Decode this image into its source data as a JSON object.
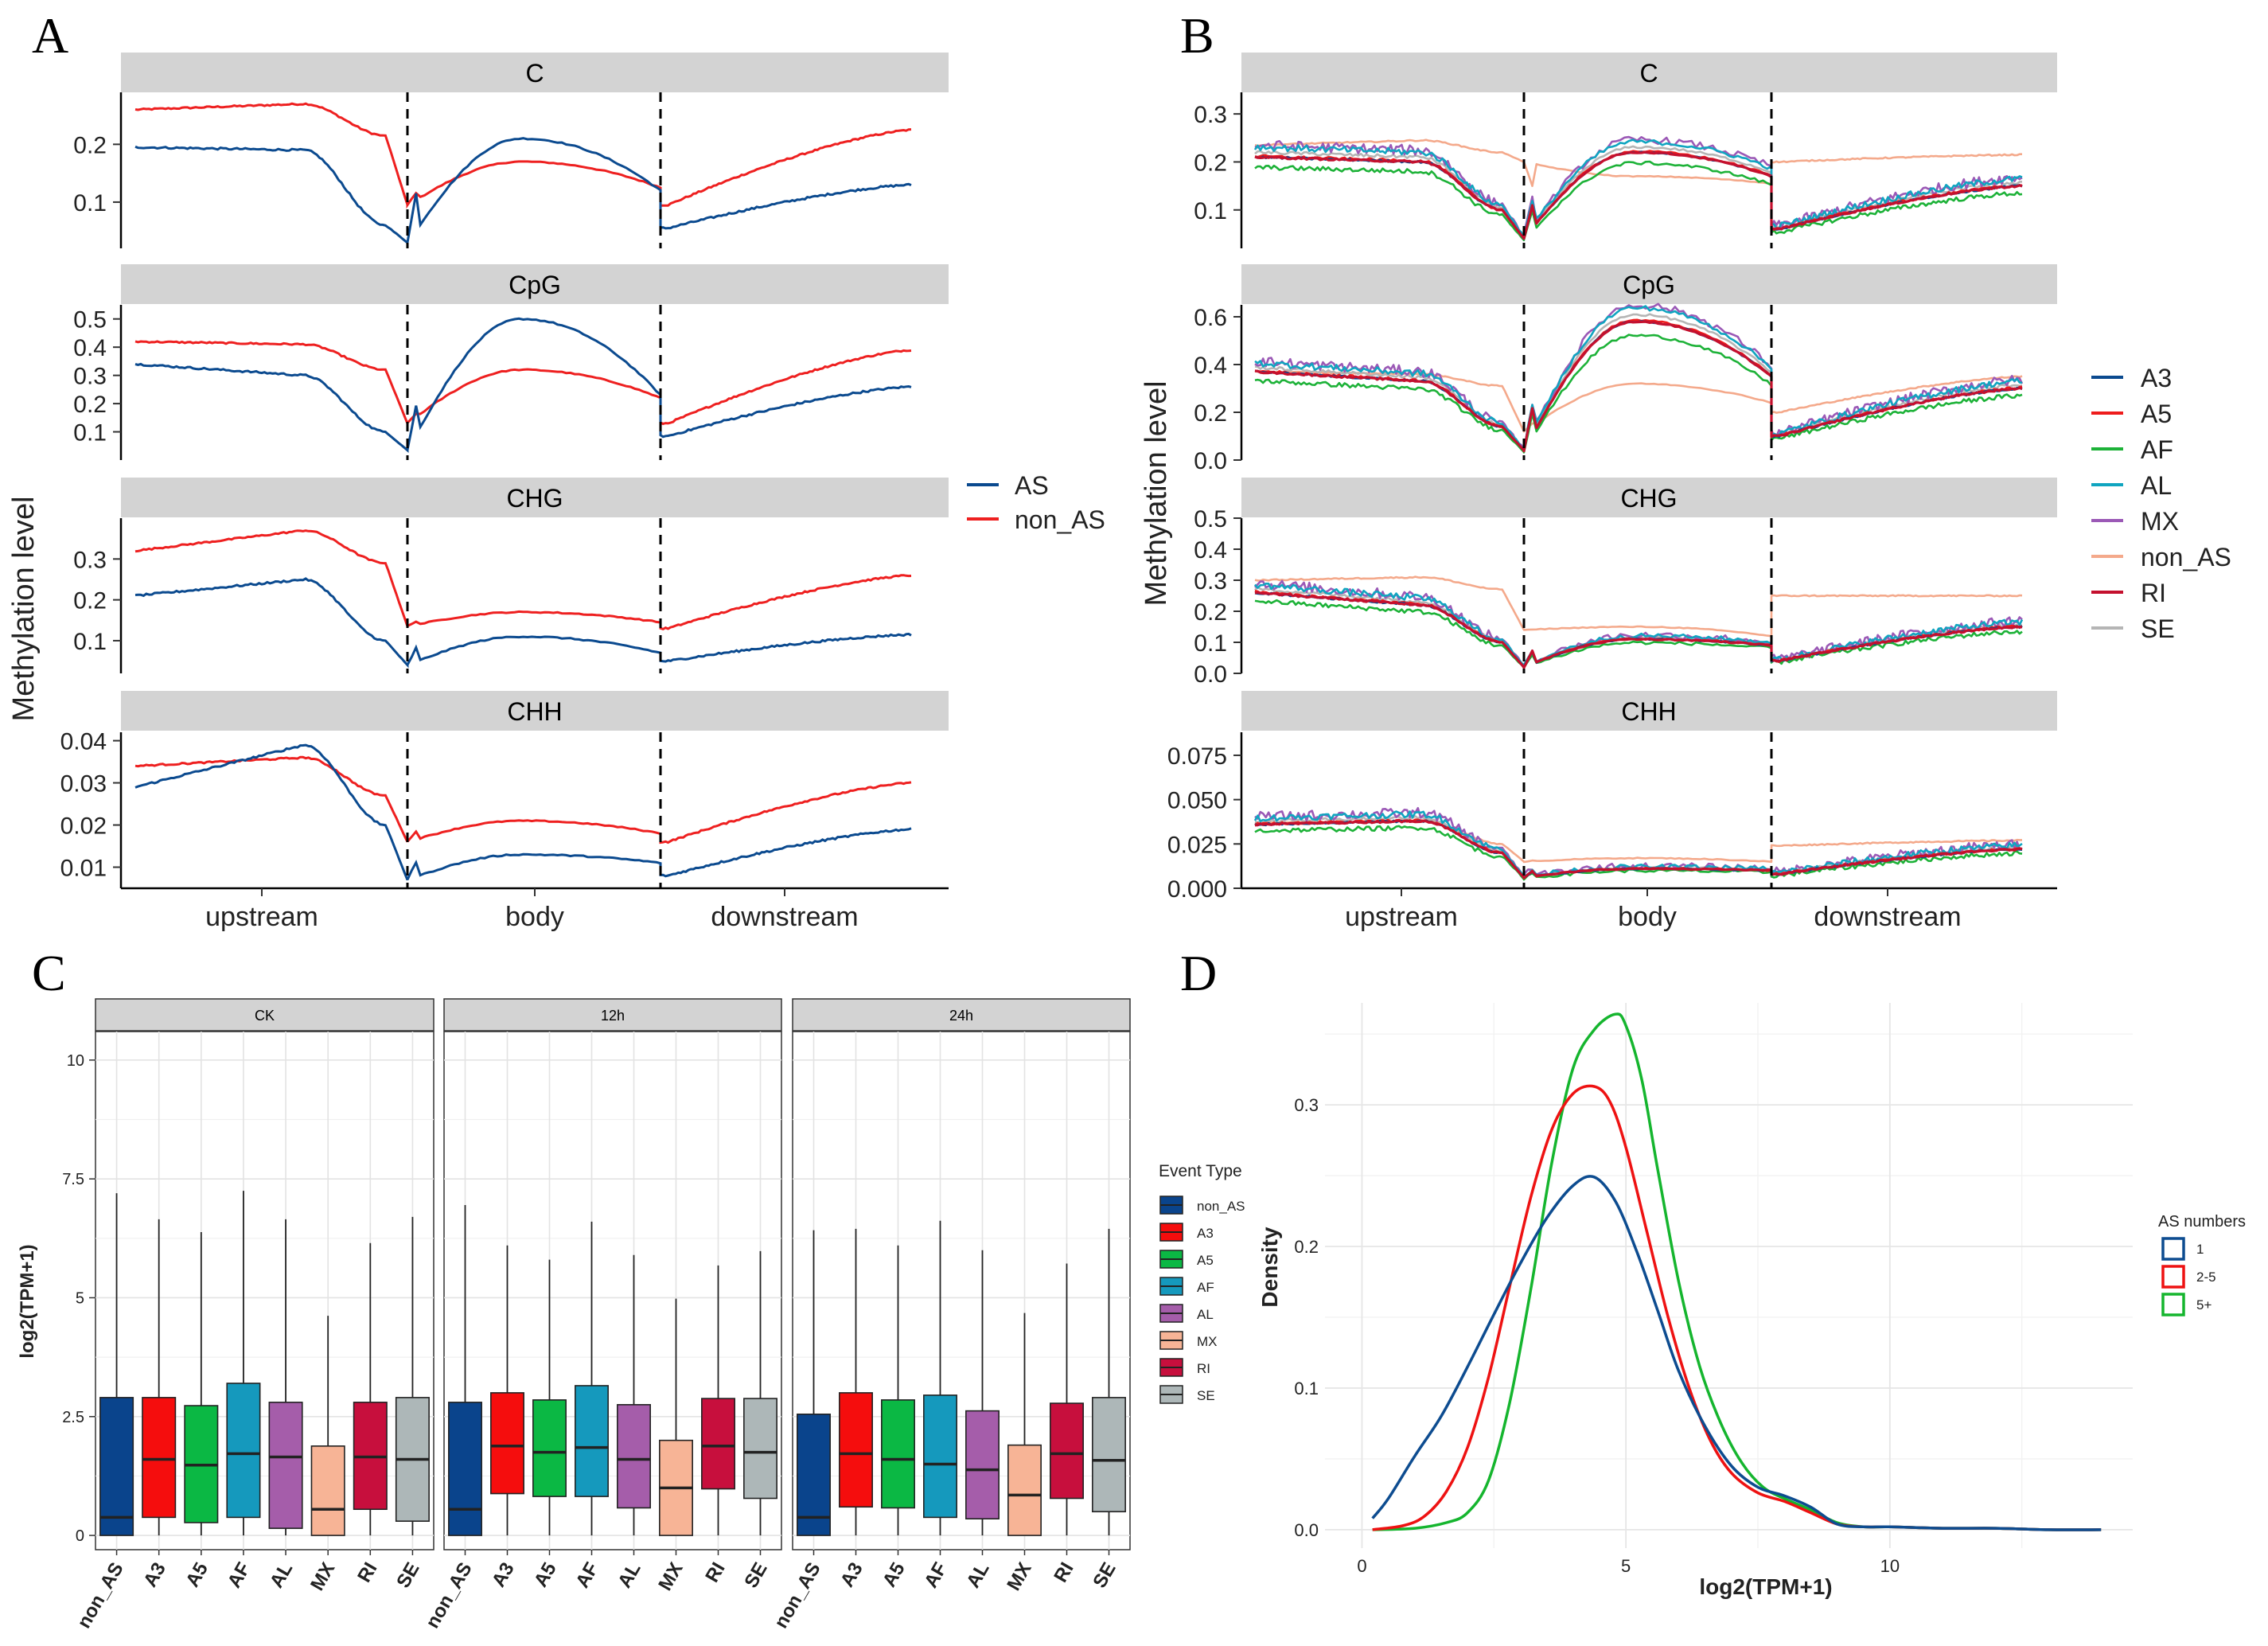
{
  "figure": {
    "panel_labels": [
      "A",
      "B",
      "C",
      "D"
    ]
  },
  "colors": {
    "AS": "#0B4A8F",
    "non_AS_A": "#EE2020",
    "A3": "#0B4A8F",
    "A5": "#EE1C1C",
    "AF": "#1DB238",
    "AL": "#10A5C0",
    "MX": "#9B59B6",
    "non_AS": "#F4A98B",
    "RI": "#C4102E",
    "SE": "#B5B5B5",
    "box_non_AS": "#0A448C",
    "box_A3": "#F50D0D",
    "box_A5": "#0BB844",
    "box_AF": "#1599BD",
    "box_AL": "#A55DAA",
    "box_MX": "#F7B496",
    "box_RI": "#C70F3D",
    "box_SE": "#ADB7B8",
    "dens_1": "#0D4C90",
    "dens_2_5": "#EE1212",
    "dens_5p": "#15B52E",
    "strip": "#D3D3D3"
  },
  "chart_data": [
    {
      "panel": "A",
      "type": "line",
      "ylabel": "Methylation level",
      "x_categories": [
        "upstream",
        "body",
        "downstream"
      ],
      "legend": [
        "AS",
        "non_AS"
      ],
      "facets": [
        {
          "name": "C",
          "ylim": [
            0.02,
            0.29
          ],
          "ticks": [
            0.1,
            0.2
          ],
          "tick_labels": [
            "0.1",
            "0.2"
          ],
          "series": {
            "AS": {
              "up_start": 0.195,
              "up_mid": 0.19,
              "up_end": 0.06,
              "up_min": 0.03,
              "body_start": 0.13,
              "body_mid": 0.21,
              "body_end": 0.12,
              "dn_min": 0.055,
              "dn_end": 0.13
            },
            "non_AS": {
              "up_start": 0.26,
              "up_mid": 0.27,
              "up_end": 0.215,
              "up_min": 0.095,
              "body_start": 0.12,
              "body_mid": 0.17,
              "body_end": 0.125,
              "dn_min": 0.095,
              "dn_end": 0.225
            }
          }
        },
        {
          "name": "CpG",
          "ylim": [
            0.0,
            0.55
          ],
          "ticks": [
            0.1,
            0.2,
            0.3,
            0.4,
            0.5
          ],
          "tick_labels": [
            "0.1",
            "0.2",
            "0.3",
            "0.4",
            "0.5"
          ],
          "series": {
            "AS": {
              "up_start": 0.34,
              "up_mid": 0.3,
              "up_end": 0.1,
              "up_min": 0.035,
              "body_start": 0.22,
              "body_mid": 0.5,
              "body_end": 0.23,
              "dn_min": 0.085,
              "dn_end": 0.26
            },
            "non_AS": {
              "up_start": 0.42,
              "up_mid": 0.41,
              "up_end": 0.32,
              "up_min": 0.13,
              "body_start": 0.17,
              "body_mid": 0.32,
              "body_end": 0.22,
              "dn_min": 0.13,
              "dn_end": 0.39
            }
          }
        },
        {
          "name": "CHG",
          "ylim": [
            0.02,
            0.4
          ],
          "ticks": [
            0.1,
            0.2,
            0.3
          ],
          "tick_labels": [
            "0.1",
            "0.2",
            "0.3"
          ],
          "series": {
            "AS": {
              "up_start": 0.21,
              "up_mid": 0.25,
              "up_end": 0.1,
              "up_min": 0.04,
              "body_start": 0.09,
              "body_mid": 0.11,
              "body_end": 0.07,
              "dn_min": 0.05,
              "dn_end": 0.115
            },
            "non_AS": {
              "up_start": 0.32,
              "up_mid": 0.37,
              "up_end": 0.29,
              "up_min": 0.135,
              "body_start": 0.15,
              "body_mid": 0.17,
              "body_end": 0.145,
              "dn_min": 0.13,
              "dn_end": 0.26
            }
          }
        },
        {
          "name": "CHH",
          "ylim": [
            0.005,
            0.042
          ],
          "ticks": [
            0.01,
            0.02,
            0.03,
            0.04
          ],
          "tick_labels": [
            "0.01",
            "0.02",
            "0.03",
            "0.04"
          ],
          "series": {
            "AS": {
              "up_start": 0.029,
              "up_mid": 0.039,
              "up_end": 0.02,
              "up_min": 0.007,
              "body_start": 0.012,
              "body_mid": 0.013,
              "body_end": 0.011,
              "dn_min": 0.008,
              "dn_end": 0.019
            },
            "non_AS": {
              "up_start": 0.034,
              "up_mid": 0.036,
              "up_end": 0.027,
              "up_min": 0.016,
              "body_start": 0.019,
              "body_mid": 0.021,
              "body_end": 0.018,
              "dn_min": 0.016,
              "dn_end": 0.03
            }
          }
        }
      ]
    },
    {
      "panel": "B",
      "type": "line",
      "ylabel": "Methylation level",
      "x_categories": [
        "upstream",
        "body",
        "downstream"
      ],
      "legend": [
        "A3",
        "A5",
        "AF",
        "AL",
        "MX",
        "non_AS",
        "RI",
        "SE"
      ],
      "facets": [
        {
          "name": "C",
          "ylim": [
            0.02,
            0.345
          ],
          "ticks": [
            0.1,
            0.2,
            0.3
          ],
          "tick_labels": [
            "0.1",
            "0.2",
            "0.3"
          ]
        },
        {
          "name": "CpG",
          "ylim": [
            0.0,
            0.65
          ],
          "ticks": [
            0.0,
            0.2,
            0.4,
            0.6
          ],
          "tick_labels": [
            "0.0",
            "0.2",
            "0.4",
            "0.6"
          ]
        },
        {
          "name": "CHG",
          "ylim": [
            0.0,
            0.5
          ],
          "ticks": [
            0.0,
            0.1,
            0.2,
            0.3,
            0.4,
            0.5
          ],
          "tick_labels": [
            "0.0",
            "0.1",
            "0.2",
            "0.3",
            "0.4",
            "0.5"
          ]
        },
        {
          "name": "CHH",
          "ylim": [
            0.0,
            0.088
          ],
          "ticks": [
            0.0,
            0.025,
            0.05,
            0.075
          ],
          "tick_labels": [
            "0.000",
            "0.025",
            "0.050",
            "0.075"
          ]
        }
      ]
    },
    {
      "panel": "C",
      "type": "box",
      "ylabel": "log2(TPM+1)",
      "ylim": [
        -0.3,
        10.6
      ],
      "ticks": [
        0.0,
        2.5,
        5.0,
        7.5,
        10.0
      ],
      "tick_labels": [
        "0.0",
        "2.5",
        "5.0",
        "7.5",
        "10.0"
      ],
      "categories": [
        "non_AS",
        "A3",
        "A5",
        "AF",
        "AL",
        "MX",
        "RI",
        "SE"
      ],
      "legend_title": "Event Type",
      "facets": [
        {
          "name": "CK",
          "boxes": [
            {
              "q1": 0.0,
              "median": 0.38,
              "q3": 2.9,
              "max": 7.2
            },
            {
              "q1": 0.38,
              "median": 1.6,
              "q3": 2.9,
              "max": 6.65
            },
            {
              "q1": 0.27,
              "median": 1.48,
              "q3": 2.73,
              "max": 6.38
            },
            {
              "q1": 0.38,
              "median": 1.72,
              "q3": 3.2,
              "max": 7.25
            },
            {
              "q1": 0.15,
              "median": 1.65,
              "q3": 2.8,
              "max": 6.65
            },
            {
              "q1": 0.0,
              "median": 0.55,
              "q3": 1.88,
              "max": 4.62
            },
            {
              "q1": 0.55,
              "median": 1.65,
              "q3": 2.8,
              "max": 6.15
            },
            {
              "q1": 0.3,
              "median": 1.6,
              "q3": 2.9,
              "max": 6.7
            }
          ]
        },
        {
          "name": "12h",
          "boxes": [
            {
              "q1": 0.0,
              "median": 0.55,
              "q3": 2.8,
              "max": 6.95
            },
            {
              "q1": 0.88,
              "median": 1.88,
              "q3": 3.0,
              "max": 6.1
            },
            {
              "q1": 0.82,
              "median": 1.75,
              "q3": 2.85,
              "max": 5.8
            },
            {
              "q1": 0.82,
              "median": 1.85,
              "q3": 3.15,
              "max": 6.6
            },
            {
              "q1": 0.58,
              "median": 1.6,
              "q3": 2.75,
              "max": 5.9
            },
            {
              "q1": 0.0,
              "median": 1.0,
              "q3": 2.0,
              "max": 4.98
            },
            {
              "q1": 0.98,
              "median": 1.88,
              "q3": 2.88,
              "max": 5.68
            },
            {
              "q1": 0.78,
              "median": 1.75,
              "q3": 2.88,
              "max": 5.98
            }
          ]
        },
        {
          "name": "24h",
          "boxes": [
            {
              "q1": 0.0,
              "median": 0.38,
              "q3": 2.55,
              "max": 6.42
            },
            {
              "q1": 0.6,
              "median": 1.72,
              "q3": 3.0,
              "max": 6.45
            },
            {
              "q1": 0.58,
              "median": 1.6,
              "q3": 2.85,
              "max": 6.1
            },
            {
              "q1": 0.38,
              "median": 1.5,
              "q3": 2.95,
              "max": 6.62
            },
            {
              "q1": 0.35,
              "median": 1.38,
              "q3": 2.62,
              "max": 6.0
            },
            {
              "q1": 0.0,
              "median": 0.85,
              "q3": 1.9,
              "max": 4.68
            },
            {
              "q1": 0.78,
              "median": 1.72,
              "q3": 2.78,
              "max": 5.72
            },
            {
              "q1": 0.5,
              "median": 1.58,
              "q3": 2.9,
              "max": 6.45
            }
          ]
        }
      ]
    },
    {
      "panel": "D",
      "type": "density",
      "xlabel": "log2(TPM+1)",
      "ylabel": "Density",
      "xlim": [
        -0.7,
        14.6
      ],
      "ylim": [
        -0.013,
        0.372
      ],
      "x_ticks": [
        0,
        5,
        10
      ],
      "x_tick_labels": [
        "0",
        "5",
        "10"
      ],
      "y_ticks": [
        0.0,
        0.1,
        0.2,
        0.3
      ],
      "y_tick_labels": [
        "0.0",
        "0.1",
        "0.2",
        "0.3"
      ],
      "legend_title": "AS numbers",
      "series": [
        {
          "name": "1",
          "x": [
            0.2,
            0.5,
            1.0,
            1.5,
            2.0,
            2.5,
            3.0,
            3.5,
            4.0,
            4.4,
            4.8,
            5.2,
            5.6,
            6.0,
            6.5,
            7.0,
            7.5,
            8.0,
            8.5,
            9.0,
            9.5,
            10.0,
            11.0,
            12.0,
            13.0,
            14.0
          ],
          "y": [
            0.008,
            0.022,
            0.052,
            0.08,
            0.115,
            0.152,
            0.188,
            0.22,
            0.243,
            0.249,
            0.232,
            0.197,
            0.155,
            0.112,
            0.073,
            0.045,
            0.03,
            0.024,
            0.016,
            0.004,
            0.002,
            0.002,
            0.001,
            0.001,
            0.0,
            0.0
          ]
        },
        {
          "name": "2-5",
          "x": [
            0.2,
            0.8,
            1.2,
            1.6,
            2.0,
            2.4,
            2.8,
            3.2,
            3.6,
            4.0,
            4.4,
            4.7,
            5.0,
            5.4,
            5.8,
            6.2,
            6.6,
            7.0,
            7.5,
            8.0,
            8.5,
            9.0,
            9.5,
            10.0,
            11.0,
            12.0,
            13.0,
            14.0
          ],
          "y": [
            0.0,
            0.003,
            0.01,
            0.027,
            0.058,
            0.108,
            0.172,
            0.235,
            0.283,
            0.308,
            0.313,
            0.302,
            0.27,
            0.21,
            0.15,
            0.1,
            0.063,
            0.04,
            0.026,
            0.02,
            0.012,
            0.004,
            0.002,
            0.002,
            0.001,
            0.001,
            0.0,
            0.0
          ]
        },
        {
          "name": "5+",
          "x": [
            0.2,
            1.0,
            1.6,
            2.0,
            2.4,
            2.8,
            3.2,
            3.6,
            4.0,
            4.4,
            4.8,
            5.0,
            5.3,
            5.6,
            6.0,
            6.4,
            6.8,
            7.2,
            7.6,
            8.0,
            8.5,
            9.0,
            9.5,
            10.0,
            11.0,
            12.0,
            13.0,
            14.0
          ],
          "y": [
            0.0,
            0.001,
            0.005,
            0.012,
            0.035,
            0.09,
            0.17,
            0.26,
            0.326,
            0.353,
            0.364,
            0.356,
            0.318,
            0.255,
            0.175,
            0.115,
            0.075,
            0.047,
            0.03,
            0.022,
            0.014,
            0.005,
            0.002,
            0.002,
            0.001,
            0.001,
            0.0,
            0.0
          ]
        }
      ]
    }
  ]
}
